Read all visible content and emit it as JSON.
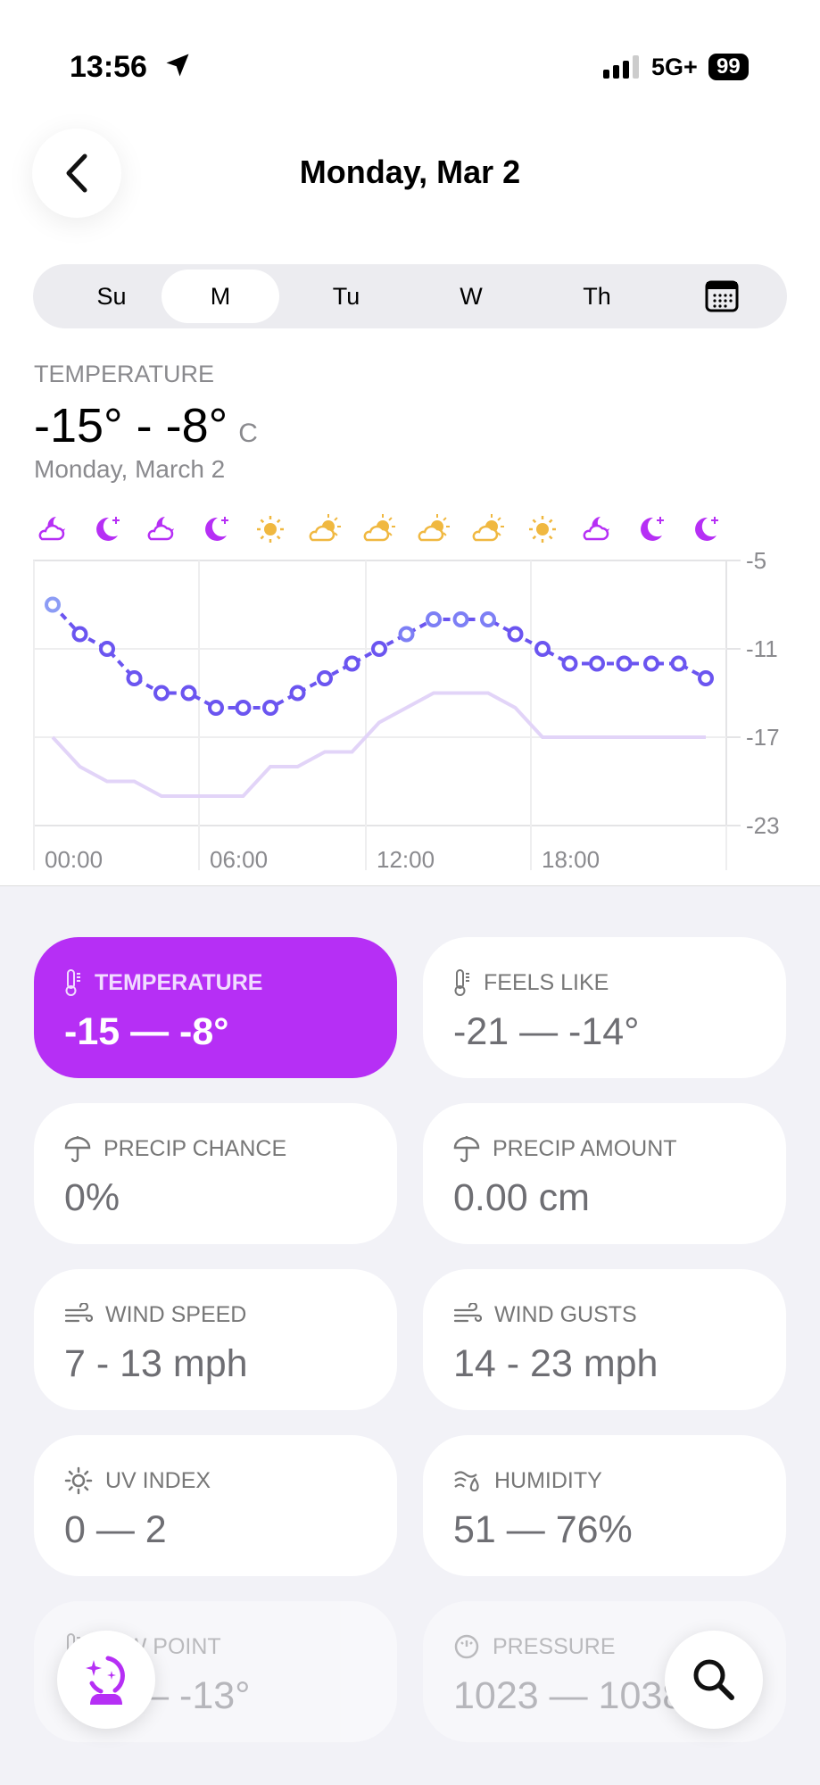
{
  "status_bar": {
    "time": "13:56",
    "network": "5G+",
    "battery": "99"
  },
  "header": {
    "title": "Monday, Mar 2"
  },
  "day_selector": {
    "days": [
      "Su",
      "M",
      "Tu",
      "W",
      "Th"
    ],
    "selected": "M",
    "calendar_icon": "calendar-icon"
  },
  "summary": {
    "label": "TEMPERATURE",
    "range": "-15° - -8°",
    "unit": "C",
    "date": "Monday, March 2"
  },
  "chart_data": {
    "type": "line",
    "hourly_icons": [
      "cloud-moon",
      "moon-stars",
      "cloud-moon",
      "moon-stars",
      "sun",
      "cloud-sun",
      "cloud-sun",
      "cloud-sun",
      "cloud-sun",
      "sun",
      "cloud-moon",
      "moon-stars",
      "moon-stars"
    ],
    "x_tick_labels": [
      "00:00",
      "06:00",
      "12:00",
      "18:00"
    ],
    "y_tick_labels": [
      "-5",
      "-11",
      "-17",
      "-23"
    ],
    "ylim": [
      -23,
      -5
    ],
    "grid": true,
    "series": [
      {
        "values": [
          -8,
          -10,
          -11,
          -13,
          -14,
          -14,
          -15,
          -15,
          -15,
          -14,
          -13,
          -12,
          -11,
          -10,
          -9,
          -9,
          -9,
          -10,
          -11,
          -12,
          -12,
          -12,
          -12,
          -12,
          -13
        ],
        "color": "#6b55f0",
        "style": "dashed-with-markers"
      },
      {
        "values": [
          -17,
          -19,
          -20,
          -20,
          -21,
          -21,
          -21,
          -21,
          -19,
          -19,
          -18,
          -18,
          -16,
          -15,
          -14,
          -14,
          -14,
          -15,
          -17,
          -17,
          -17,
          -17,
          -17,
          -17,
          -17
        ],
        "color": "#e2d4f8",
        "style": "solid"
      }
    ]
  },
  "cards": [
    {
      "label": "TEMPERATURE",
      "value": "-15 — -8°",
      "icon": "thermometer-icon",
      "active": true
    },
    {
      "label": "FEELS LIKE",
      "value": "-21 — -14°",
      "icon": "thermometer-icon"
    },
    {
      "label": "PRECIP CHANCE",
      "value": "0%",
      "icon": "umbrella-icon"
    },
    {
      "label": "PRECIP AMOUNT",
      "value": "0.00 cm",
      "icon": "umbrella-icon"
    },
    {
      "label": "WIND SPEED",
      "value": "7 - 13 mph",
      "icon": "wind-icon"
    },
    {
      "label": "WIND GUSTS",
      "value": "14 - 23 mph",
      "icon": "wind-icon"
    },
    {
      "label": "UV INDEX",
      "value": "0 — 2",
      "icon": "sun-icon"
    },
    {
      "label": "HUMIDITY",
      "value": "51 — 76%",
      "icon": "humidity-icon"
    },
    {
      "label": "DEW POINT",
      "value": "-19 — -13°",
      "icon": "thermometer-icon"
    },
    {
      "label": "PRESSURE",
      "value": "1023 — 1038",
      "icon": "gauge-icon"
    }
  ],
  "colors": {
    "accent": "#b62ff5",
    "line": "#6b55f0",
    "feels": "#e2d4f8",
    "sun": "#f0b840",
    "night": "#b62ff5"
  }
}
